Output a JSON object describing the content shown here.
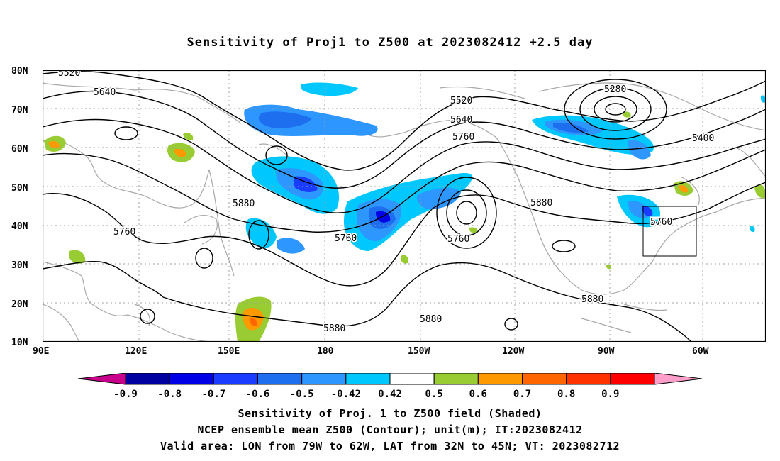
{
  "title": "Sensitivity of Proj1 to Z500 at 2023082412 +2.5 day",
  "axes": {
    "lat_labels": [
      "80N",
      "70N",
      "60N",
      "50N",
      "40N",
      "30N",
      "20N",
      "10N"
    ],
    "lon_labels": [
      "90E",
      "120E",
      "150E",
      "180",
      "150W",
      "120W",
      "90W",
      "60W"
    ]
  },
  "contour_labels": [
    {
      "text": "5520",
      "lon": 97,
      "lat": 80
    },
    {
      "text": "5640",
      "lon": 111,
      "lat": 73
    },
    {
      "text": "5520",
      "lon": -135,
      "lat": 71
    },
    {
      "text": "5640",
      "lon": -135,
      "lat": 67
    },
    {
      "text": "5760",
      "lon": -134,
      "lat": 62
    },
    {
      "text": "5280",
      "lon": -91,
      "lat": 74
    },
    {
      "text": "5400",
      "lon": -67,
      "lat": 62
    },
    {
      "text": "5880",
      "lon": 155,
      "lat": 46
    },
    {
      "text": "5760",
      "lon": 118,
      "lat": 39
    },
    {
      "text": "5760",
      "lon": -171,
      "lat": 37
    },
    {
      "text": "5760",
      "lon": -135,
      "lat": 37
    },
    {
      "text": "5880",
      "lon": -113,
      "lat": 45
    },
    {
      "text": "5760",
      "lon": -75,
      "lat": 41
    },
    {
      "text": "5880",
      "lon": -94,
      "lat": 21
    },
    {
      "text": "5880",
      "lon": -179,
      "lat": 13
    },
    {
      "text": "5880",
      "lon": -147,
      "lat": 16
    }
  ],
  "valid_box": {
    "lon_min": -79,
    "lon_max": -62,
    "lat_min": 32,
    "lat_max": 45
  },
  "colorbar": {
    "labels": [
      "-0.9",
      "-0.8",
      "-0.7",
      "-0.6",
      "-0.5",
      "-0.42",
      "0.42",
      "0.5",
      "0.6",
      "0.7",
      "0.8",
      "0.9"
    ],
    "colors": [
      "#0000a0",
      "#0000e6",
      "#1a3cff",
      "#1e6ef0",
      "#2d96ff",
      "#00c8ff",
      "#ffffff",
      "#99cc33",
      "#ff9900",
      "#ff6600",
      "#ff3300",
      "#ff0000"
    ],
    "low_color": "#c8008c",
    "high_color": "#ff9ec8"
  },
  "captions": [
    "Sensitivity of Proj. 1 to Z500 field (Shaded)",
    "NCEP ensemble mean Z500 (Contour); unit(m); IT:2023082412",
    "Valid area: LON from 79W to 62W, LAT from 32N to 45N; VT: 2023082712"
  ]
}
